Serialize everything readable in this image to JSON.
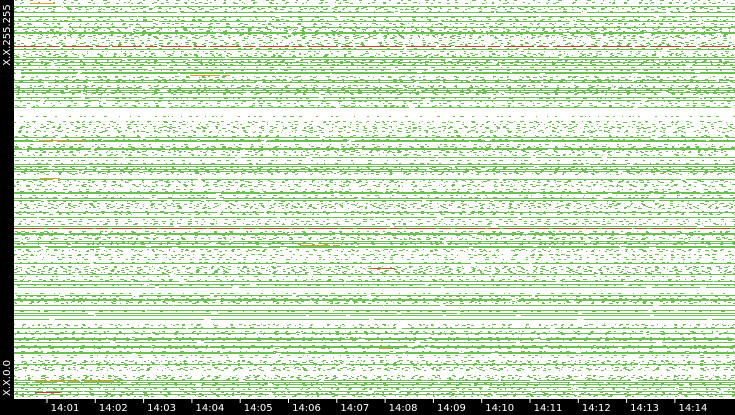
{
  "y_axis": {
    "top_label": "X.X.255.255",
    "bottom_label": "X.X.0.0"
  },
  "x_axis": {
    "labels": [
      "14:01",
      "14:02",
      "14:03",
      "14:04",
      "14:05",
      "14:06",
      "14:07",
      "14:08",
      "14:09",
      "14:10",
      "14:11",
      "14:12",
      "14:13",
      "14:14"
    ]
  }
}
